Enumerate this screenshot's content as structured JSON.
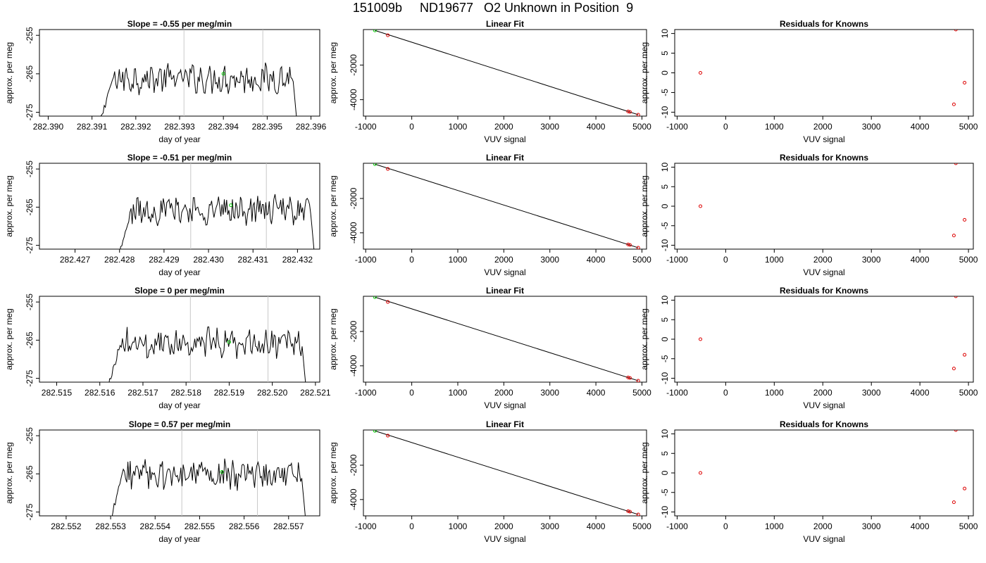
{
  "title": "151009b     ND19677   O2 Unknown in Position  9",
  "chart_data": [
    {
      "type": "line",
      "title": "Slope =  -0.55  per meg/min",
      "xlabel": "day of year",
      "ylabel": "approx. per meg",
      "x_ticks": [
        "282.390",
        "282.391",
        "282.392",
        "282.393",
        "282.394",
        "282.395",
        "282.396"
      ],
      "y_ticks": [
        "-255",
        "-265",
        "-275"
      ],
      "xlim": [
        282.3898,
        282.3962
      ],
      "ylim": [
        -276,
        -253.5
      ],
      "x_start": 282.3912,
      "x_end": 282.3957,
      "level": -266.2,
      "vlines": [
        282.3931,
        282.3949
      ],
      "marker": {
        "x": 282.394,
        "y": -265
      },
      "grid": false
    },
    {
      "type": "scatter",
      "title": "Linear Fit",
      "xlabel": "VUV signal",
      "ylabel": "approx. per meg",
      "x_ticks": [
        "-1000",
        "0",
        "1000",
        "2000",
        "3000",
        "4000",
        "5000"
      ],
      "y_ticks": [
        "-2000",
        "-4000"
      ],
      "xlim": [
        -1050,
        5100
      ],
      "ylim": [
        -4950,
        50
      ],
      "points": [
        {
          "x": -800,
          "y": 0,
          "color": "green"
        },
        {
          "x": -520,
          "y": -280,
          "color": "red"
        },
        {
          "x": 4700,
          "y": -4680,
          "color": "red"
        },
        {
          "x": 4740,
          "y": -4710,
          "color": "red"
        },
        {
          "x": 4920,
          "y": -4870,
          "color": "red"
        }
      ],
      "fit_line": {
        "x": [
          -800,
          4920
        ],
        "y": [
          0,
          -4870
        ]
      }
    },
    {
      "type": "scatter",
      "title": "Residuals for Knowns",
      "xlabel": "VUV signal",
      "ylabel": "approx. per meg",
      "x_ticks": [
        "-1000",
        "0",
        "1000",
        "2000",
        "3000",
        "4000",
        "5000"
      ],
      "y_ticks": [
        "10",
        "5",
        "0",
        "-5",
        "-10"
      ],
      "xlim": [
        -1050,
        5100
      ],
      "ylim": [
        -11,
        11
      ],
      "points": [
        {
          "x": -520,
          "y": 0
        },
        {
          "x": 4700,
          "y": -8
        },
        {
          "x": 4740,
          "y": 11
        },
        {
          "x": 4920,
          "y": -2.5
        }
      ]
    },
    {
      "type": "line",
      "title": "Slope =  -0.51  per meg/min",
      "xlabel": "day of year",
      "ylabel": "approx. per meg",
      "x_ticks": [
        "282.427",
        "282.428",
        "282.429",
        "282.430",
        "282.431",
        "282.432"
      ],
      "y_ticks": [
        "-255",
        "-265",
        "-275"
      ],
      "xlim": [
        282.4262,
        282.4325
      ],
      "ylim": [
        -276,
        -253.5
      ],
      "x_start": 282.428,
      "x_end": 282.4324,
      "level": -265.8,
      "vlines": [
        282.4296,
        282.4313
      ],
      "marker": {
        "x": 282.4305,
        "y": -264.5
      },
      "grid": false
    },
    {
      "type": "scatter",
      "title": "Linear Fit",
      "xlabel": "VUV signal",
      "ylabel": "approx. per meg",
      "x_ticks": [
        "-1000",
        "0",
        "1000",
        "2000",
        "3000",
        "4000",
        "5000"
      ],
      "y_ticks": [
        "-2000",
        "-4000"
      ],
      "xlim": [
        -1050,
        5100
      ],
      "ylim": [
        -4950,
        50
      ],
      "points": [
        {
          "x": -800,
          "y": 0,
          "color": "green"
        },
        {
          "x": -520,
          "y": -280,
          "color": "red"
        },
        {
          "x": 4700,
          "y": -4680,
          "color": "red"
        },
        {
          "x": 4740,
          "y": -4710,
          "color": "red"
        },
        {
          "x": 4920,
          "y": -4870,
          "color": "red"
        }
      ],
      "fit_line": {
        "x": [
          -800,
          4920
        ],
        "y": [
          0,
          -4870
        ]
      }
    },
    {
      "type": "scatter",
      "title": "Residuals for Knowns",
      "xlabel": "VUV signal",
      "ylabel": "approx. per meg",
      "x_ticks": [
        "-1000",
        "0",
        "1000",
        "2000",
        "3000",
        "4000",
        "5000"
      ],
      "y_ticks": [
        "10",
        "5",
        "0",
        "-5",
        "-10"
      ],
      "xlim": [
        -1050,
        5100
      ],
      "ylim": [
        -11,
        11
      ],
      "points": [
        {
          "x": -520,
          "y": 0
        },
        {
          "x": 4700,
          "y": -7.5
        },
        {
          "x": 4740,
          "y": 11
        },
        {
          "x": 4920,
          "y": -3.5
        }
      ]
    },
    {
      "type": "line",
      "title": "Slope =  0  per meg/min",
      "xlabel": "day of year",
      "ylabel": "approx. per meg",
      "x_ticks": [
        "282.515",
        "282.516",
        "282.517",
        "282.518",
        "282.519",
        "282.520",
        "282.521"
      ],
      "y_ticks": [
        "-255",
        "-265",
        "-275"
      ],
      "xlim": [
        282.5146,
        282.5211
      ],
      "ylim": [
        -276,
        -253.5
      ],
      "x_start": 282.5162,
      "x_end": 282.5208,
      "level": -265.8,
      "vlines": [
        282.5181,
        282.5199
      ],
      "marker": {
        "x": 282.519,
        "y": -265.5
      },
      "grid": false
    },
    {
      "type": "scatter",
      "title": "Linear Fit",
      "xlabel": "VUV signal",
      "ylabel": "approx. per meg",
      "x_ticks": [
        "-1000",
        "0",
        "1000",
        "2000",
        "3000",
        "4000",
        "5000"
      ],
      "y_ticks": [
        "-2000",
        "-4000"
      ],
      "xlim": [
        -1050,
        5100
      ],
      "ylim": [
        -4950,
        50
      ],
      "points": [
        {
          "x": -800,
          "y": 0,
          "color": "green"
        },
        {
          "x": -520,
          "y": -280,
          "color": "red"
        },
        {
          "x": 4700,
          "y": -4680,
          "color": "red"
        },
        {
          "x": 4740,
          "y": -4710,
          "color": "red"
        },
        {
          "x": 4920,
          "y": -4870,
          "color": "red"
        }
      ],
      "fit_line": {
        "x": [
          -800,
          4920
        ],
        "y": [
          0,
          -4870
        ]
      }
    },
    {
      "type": "scatter",
      "title": "Residuals for Knowns",
      "xlabel": "VUV signal",
      "ylabel": "approx. per meg",
      "x_ticks": [
        "-1000",
        "0",
        "1000",
        "2000",
        "3000",
        "4000",
        "5000"
      ],
      "y_ticks": [
        "10",
        "5",
        "0",
        "-5",
        "-10"
      ],
      "xlim": [
        -1050,
        5100
      ],
      "ylim": [
        -11,
        11
      ],
      "points": [
        {
          "x": -520,
          "y": 0
        },
        {
          "x": 4700,
          "y": -7.5
        },
        {
          "x": 4740,
          "y": 11
        },
        {
          "x": 4920,
          "y": -4
        }
      ]
    },
    {
      "type": "line",
      "title": "Slope =  0.57  per meg/min",
      "xlabel": "day of year",
      "ylabel": "approx. per meg",
      "x_ticks": [
        "282.552",
        "282.553",
        "282.554",
        "282.555",
        "282.556",
        "282.557"
      ],
      "y_ticks": [
        "-255",
        "-265",
        "-275"
      ],
      "xlim": [
        282.5514,
        282.5577
      ],
      "ylim": [
        -276,
        -253.5
      ],
      "x_start": 282.553,
      "x_end": 282.5574,
      "level": -265.3,
      "vlines": [
        282.5546,
        282.5563
      ],
      "marker": {
        "x": 282.5555,
        "y": -264.5
      },
      "grid": false
    },
    {
      "type": "scatter",
      "title": "Linear Fit",
      "xlabel": "VUV signal",
      "ylabel": "approx. per meg",
      "x_ticks": [
        "-1000",
        "0",
        "1000",
        "2000",
        "3000",
        "4000",
        "5000"
      ],
      "y_ticks": [
        "-2000",
        "-4000"
      ],
      "xlim": [
        -1050,
        5100
      ],
      "ylim": [
        -4950,
        50
      ],
      "points": [
        {
          "x": -800,
          "y": 0,
          "color": "green"
        },
        {
          "x": -520,
          "y": -280,
          "color": "red"
        },
        {
          "x": 4700,
          "y": -4680,
          "color": "red"
        },
        {
          "x": 4740,
          "y": -4710,
          "color": "red"
        },
        {
          "x": 4920,
          "y": -4870,
          "color": "red"
        }
      ],
      "fit_line": {
        "x": [
          -800,
          4920
        ],
        "y": [
          0,
          -4870
        ]
      }
    },
    {
      "type": "scatter",
      "title": "Residuals for Knowns",
      "xlabel": "VUV signal",
      "ylabel": "approx. per meg",
      "x_ticks": [
        "-1000",
        "0",
        "1000",
        "2000",
        "3000",
        "4000",
        "5000"
      ],
      "y_ticks": [
        "10",
        "5",
        "0",
        "-5",
        "-10"
      ],
      "xlim": [
        -1050,
        5100
      ],
      "ylim": [
        -11,
        11
      ],
      "points": [
        {
          "x": -520,
          "y": 0
        },
        {
          "x": 4700,
          "y": -7.5
        },
        {
          "x": 4740,
          "y": 11
        },
        {
          "x": 4920,
          "y": -4
        }
      ]
    }
  ]
}
